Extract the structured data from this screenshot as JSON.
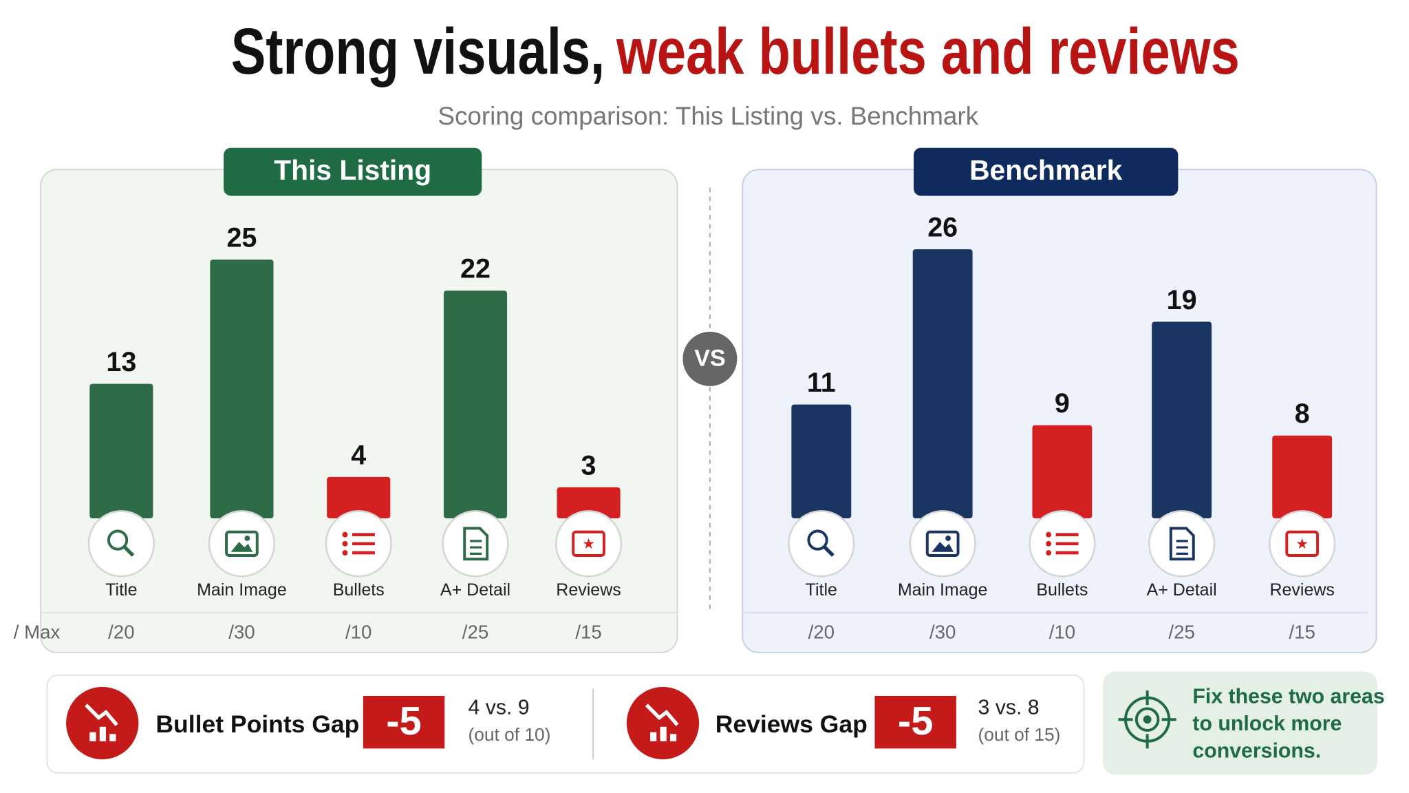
{
  "title": "Strong visuals,",
  "title_highlight": "weak bullets and reviews",
  "subtitle": "Scoring comparison: This Listing vs. Benchmark",
  "vs": "VS",
  "max_row_label": "/ Max",
  "chart_data": [
    {
      "type": "bar",
      "title": "This Listing",
      "categories": [
        "Title",
        "Main Image",
        "Bullets",
        "A+ Detail",
        "Reviews"
      ],
      "values": [
        13,
        25,
        4,
        22,
        3
      ],
      "colors": [
        "#2e6b47",
        "#2e6b47",
        "#d42020",
        "#2e6b47",
        "#d42020"
      ],
      "max_labels": [
        "/20",
        "/30",
        "/10",
        "/25",
        "/15"
      ]
    },
    {
      "type": "bar",
      "title": "Benchmark",
      "categories": [
        "Title",
        "Main Image",
        "Bullets",
        "A+ Detail",
        "Reviews"
      ],
      "values": [
        11,
        26,
        9,
        19,
        8
      ],
      "colors": [
        "#1b3563",
        "#1b3563",
        "#d42020",
        "#1b3563",
        "#d42020"
      ],
      "max_labels": [
        "/20",
        "/30",
        "/10",
        "/25",
        "/15"
      ]
    }
  ],
  "gaps": [
    {
      "title": "Bullet Points Gap",
      "delta": "-5",
      "comparison": "4 vs. 9",
      "scope": "(out of 10)"
    },
    {
      "title": "Reviews Gap",
      "delta": "-5",
      "comparison": "3 vs. 8",
      "scope": "(out of 15)"
    }
  ],
  "callout": [
    "Fix these two areas",
    "to unlock more",
    "conversions."
  ]
}
